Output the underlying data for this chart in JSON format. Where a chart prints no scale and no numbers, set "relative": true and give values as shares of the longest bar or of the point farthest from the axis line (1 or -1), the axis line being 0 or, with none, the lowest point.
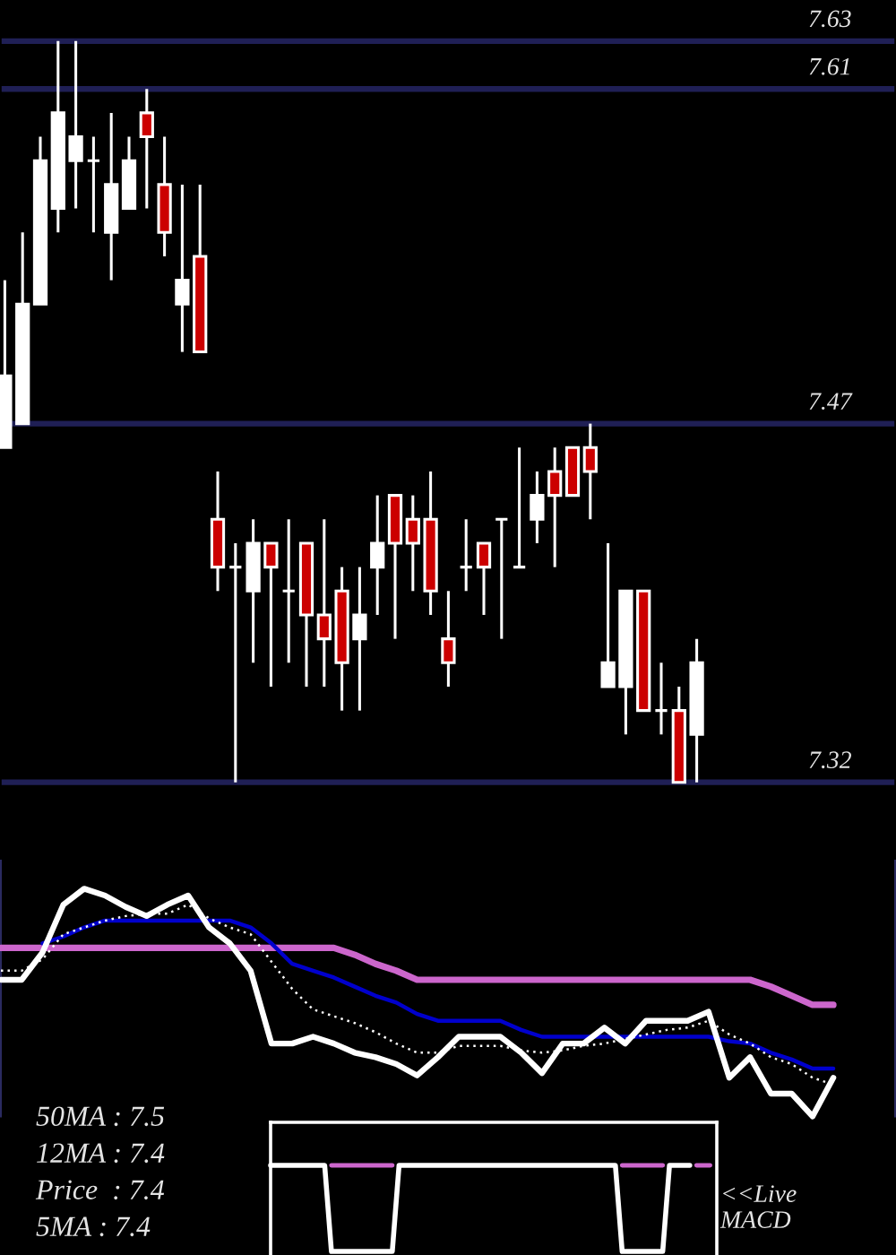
{
  "chart_data": [
    {
      "type": "candlestick",
      "categories": [
        null,
        null,
        null,
        null,
        null,
        null,
        null,
        null,
        null,
        null,
        null,
        null,
        null,
        null,
        null,
        null,
        null,
        null,
        null,
        null,
        null,
        null,
        null,
        null,
        null,
        null,
        null,
        null,
        null,
        null,
        null,
        null,
        null,
        null,
        null,
        null,
        null,
        null,
        null,
        null
      ],
      "ohlc": [
        [
          7.46,
          7.53,
          7.46,
          7.49
        ],
        [
          7.47,
          7.55,
          7.47,
          7.52
        ],
        [
          7.52,
          7.59,
          7.52,
          7.58
        ],
        [
          7.56,
          7.63,
          7.55,
          7.6
        ],
        [
          7.58,
          7.63,
          7.56,
          7.59
        ],
        [
          7.58,
          7.59,
          7.55,
          7.58
        ],
        [
          7.55,
          7.6,
          7.53,
          7.57
        ],
        [
          7.56,
          7.59,
          7.56,
          7.58
        ],
        [
          7.6,
          7.61,
          7.56,
          7.59
        ],
        [
          7.57,
          7.59,
          7.54,
          7.55
        ],
        [
          7.52,
          7.57,
          7.5,
          7.53
        ],
        [
          7.54,
          7.57,
          7.5,
          7.5
        ],
        [
          7.43,
          7.45,
          7.4,
          7.41
        ],
        [
          7.41,
          7.42,
          7.32,
          7.41
        ],
        [
          7.4,
          7.43,
          7.37,
          7.42
        ],
        [
          7.42,
          7.42,
          7.36,
          7.41
        ],
        [
          7.4,
          7.43,
          7.37,
          7.4
        ],
        [
          7.42,
          7.42,
          7.36,
          7.39
        ],
        [
          7.39,
          7.43,
          7.36,
          7.38
        ],
        [
          7.4,
          7.41,
          7.35,
          7.37
        ],
        [
          7.38,
          7.41,
          7.35,
          7.39
        ],
        [
          7.41,
          7.44,
          7.39,
          7.42
        ],
        [
          7.44,
          7.44,
          7.38,
          7.42
        ],
        [
          7.43,
          7.44,
          7.4,
          7.42
        ],
        [
          7.43,
          7.45,
          7.39,
          7.4
        ],
        [
          7.38,
          7.4,
          7.36,
          7.37
        ],
        [
          7.41,
          7.43,
          7.4,
          7.41
        ],
        [
          7.42,
          7.42,
          7.39,
          7.41
        ],
        [
          7.43,
          7.43,
          7.38,
          7.43
        ],
        [
          7.41,
          7.46,
          7.41,
          7.41
        ],
        [
          7.43,
          7.45,
          7.42,
          7.44
        ],
        [
          7.45,
          7.46,
          7.41,
          7.44
        ],
        [
          7.46,
          7.46,
          7.44,
          7.44
        ],
        [
          7.46,
          7.47,
          7.43,
          7.45
        ],
        [
          7.36,
          7.42,
          7.36,
          7.37
        ],
        [
          7.36,
          7.4,
          7.34,
          7.4
        ],
        [
          7.4,
          7.4,
          7.35,
          7.35
        ],
        [
          7.35,
          7.37,
          7.34,
          7.35
        ],
        [
          7.35,
          7.36,
          7.32,
          7.32
        ],
        [
          7.34,
          7.38,
          7.32,
          7.37
        ]
      ],
      "colors": [
        "#ffffff",
        "#ffffff",
        "#ffffff",
        "#ffffff",
        "#ffffff",
        "#ffffff",
        "#ffffff",
        "#ffffff",
        "#cc0000",
        "#cc0000",
        "#ffffff",
        "#cc0000",
        "#cc0000",
        "#ffffff",
        "#ffffff",
        "#cc0000",
        "#ffffff",
        "#cc0000",
        "#cc0000",
        "#cc0000",
        "#ffffff",
        "#ffffff",
        "#cc0000",
        "#cc0000",
        "#cc0000",
        "#cc0000",
        "#ffffff",
        "#cc0000",
        "#ffffff",
        "#ffffff",
        "#ffffff",
        "#cc0000",
        "#cc0000",
        "#cc0000",
        "#ffffff",
        "#ffffff",
        "#cc0000",
        "#ffffff",
        "#cc0000",
        "#ffffff"
      ],
      "ylim": [
        7.3,
        7.64
      ],
      "yticks": [
        7.63,
        7.61,
        7.47,
        7.32
      ],
      "grid": "y",
      "tick_labels": "y"
    },
    {
      "type": "line",
      "relative": true,
      "categories": [
        null,
        null,
        null,
        null,
        null,
        null,
        null,
        null,
        null,
        null,
        null,
        null,
        null,
        null,
        null,
        null,
        null,
        null,
        null,
        null,
        null,
        null,
        null,
        null,
        null,
        null,
        null,
        null,
        null,
        null,
        null,
        null,
        null,
        null,
        null,
        null,
        null,
        null,
        null,
        null,
        null
      ],
      "series": [
        {
          "color": "#cc66cc",
          "values": [
            0.74,
            0.74,
            0.74,
            0.74,
            0.74,
            0.74,
            0.74,
            0.74,
            0.74,
            0.74,
            0.74,
            0.74,
            0.74,
            0.74,
            0.74,
            0.74,
            0.74,
            0.71,
            0.67,
            0.64,
            0.6,
            0.6,
            0.6,
            0.6,
            0.6,
            0.6,
            0.6,
            0.6,
            0.6,
            0.6,
            0.6,
            0.6,
            0.6,
            0.6,
            0.6,
            0.6,
            0.6,
            0.57,
            0.53,
            0.49,
            0.49
          ]
        },
        {
          "color": "#0000cc",
          "values": [
            null,
            null,
            0.76,
            0.79,
            0.83,
            0.86,
            0.86,
            0.86,
            0.86,
            0.86,
            0.86,
            0.86,
            0.83,
            0.76,
            0.67,
            0.64,
            0.61,
            0.57,
            0.53,
            0.5,
            0.45,
            0.42,
            0.42,
            0.42,
            0.42,
            0.38,
            0.35,
            0.35,
            0.35,
            0.35,
            0.35,
            0.35,
            0.35,
            0.35,
            0.35,
            0.33,
            0.32,
            0.28,
            0.25,
            0.21,
            0.21
          ]
        },
        {
          "color": "#ffffff",
          "line_style": "dotted",
          "values": [
            0.64,
            0.64,
            0.69,
            0.8,
            0.83,
            0.86,
            0.88,
            0.89,
            0.89,
            0.93,
            0.87,
            0.83,
            0.8,
            0.68,
            0.56,
            0.47,
            0.44,
            0.41,
            0.37,
            0.32,
            0.28,
            0.28,
            0.31,
            0.31,
            0.31,
            0.29,
            0.28,
            0.29,
            0.31,
            0.32,
            0.34,
            0.36,
            0.38,
            0.39,
            0.42,
            0.36,
            0.32,
            0.26,
            0.23,
            0.17,
            0.14
          ]
        },
        {
          "color": "#ffffff",
          "values": [
            0.6,
            0.6,
            0.72,
            0.93,
            1.0,
            0.97,
            0.92,
            0.88,
            0.93,
            0.97,
            0.83,
            0.76,
            0.64,
            0.32,
            0.32,
            0.35,
            0.32,
            0.28,
            0.26,
            0.23,
            0.18,
            0.26,
            0.35,
            0.35,
            0.35,
            0.28,
            0.19,
            0.32,
            0.32,
            0.39,
            0.32,
            0.42,
            0.42,
            0.42,
            0.46,
            0.17,
            0.26,
            0.1,
            0.1,
            0.0,
            0.17
          ]
        }
      ],
      "annotations": [
        "50MA : 7.5",
        "12MA : 7.4",
        "Price  : 7.4",
        "5MA : 7.4"
      ]
    },
    {
      "type": "line",
      "relative": true,
      "categories": [
        null,
        null,
        null,
        null,
        null,
        null,
        null,
        null,
        null,
        null,
        null,
        null,
        null,
        null,
        null,
        null,
        null,
        null,
        null,
        null,
        null,
        null,
        null,
        null,
        null,
        null,
        null,
        null,
        null,
        null,
        null,
        null,
        null,
        null,
        null,
        null,
        null,
        null,
        null,
        null,
        null,
        null,
        null,
        null,
        null,
        null,
        null,
        null,
        null,
        null,
        null,
        null,
        null,
        null,
        null,
        null,
        null,
        null,
        null,
        null,
        null,
        null,
        null,
        null,
        null,
        null,
        null
      ],
      "series": [
        {
          "color": "#cc66cc",
          "values": [
            null,
            null,
            null,
            null,
            null,
            null,
            null,
            null,
            null,
            1,
            1,
            1,
            1,
            1,
            1,
            1,
            1,
            1,
            1,
            null,
            null,
            null,
            null,
            null,
            null,
            null,
            null,
            null,
            null,
            null,
            null,
            null,
            null,
            null,
            null,
            null,
            null,
            null,
            null,
            null,
            null,
            null,
            null,
            null,
            null,
            null,
            null,
            null,
            null,
            null,
            null,
            null,
            1,
            1,
            1,
            1,
            1,
            1,
            1,
            null,
            null,
            null,
            null,
            null,
            null,
            null,
            null
          ]
        },
        {
          "color": "#cc66cc",
          "values": [
            null,
            null,
            null,
            null,
            null,
            null,
            null,
            null,
            null,
            null,
            null,
            null,
            null,
            null,
            null,
            null,
            null,
            null,
            null,
            null,
            null,
            null,
            null,
            null,
            null,
            null,
            null,
            null,
            null,
            null,
            null,
            null,
            null,
            null,
            null,
            null,
            null,
            null,
            null,
            null,
            null,
            null,
            null,
            null,
            null,
            null,
            null,
            null,
            null,
            null,
            null,
            null,
            null,
            null,
            null,
            null,
            null,
            null,
            null,
            null,
            null,
            null,
            null,
            1,
            1,
            1,
            null
          ]
        },
        {
          "color": "#ffffff",
          "values": [
            1,
            1,
            1,
            1,
            1,
            1,
            1,
            1,
            1,
            0,
            0,
            0,
            0,
            0,
            0,
            0,
            0,
            0,
            0,
            1,
            1,
            1,
            1,
            1,
            1,
            1,
            1,
            1,
            1,
            1,
            1,
            1,
            1,
            1,
            1,
            1,
            1,
            1,
            1,
            1,
            1,
            1,
            1,
            1,
            1,
            1,
            1,
            1,
            1,
            1,
            1,
            1,
            0,
            0,
            0,
            0,
            0,
            0,
            0,
            1,
            1,
            1,
            1,
            null,
            null,
            null,
            null
          ]
        }
      ],
      "annotations": [
        "<<Live",
        "MACD"
      ]
    }
  ]
}
